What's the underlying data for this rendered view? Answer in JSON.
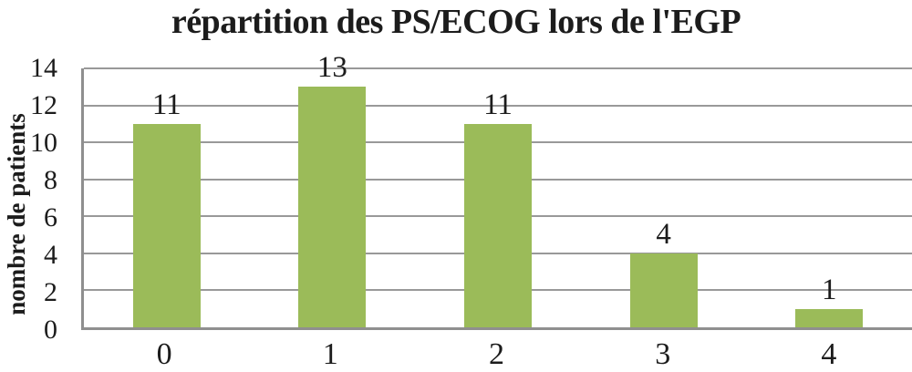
{
  "chart_data": {
    "type": "bar",
    "title": "répartition des PS/ECOG lors de l'EGP",
    "xlabel": "",
    "ylabel": "nombre de patients",
    "categories": [
      "0",
      "1",
      "2",
      "3",
      "4"
    ],
    "values": [
      11,
      13,
      11,
      4,
      1
    ],
    "series": [
      {
        "name": "nombre de patients",
        "values": [
          11,
          13,
          11,
          4,
          1
        ]
      }
    ],
    "data_labels": [
      "11",
      "13",
      "11",
      "4",
      "1"
    ],
    "ylim": [
      0,
      14
    ],
    "ytick_step": 2,
    "yticks": [
      "14",
      "12",
      "10",
      "8",
      "6",
      "4",
      "2",
      "0"
    ],
    "grid": "horizontal-on",
    "legend": "none",
    "colors": {
      "bar": "#9BBB59",
      "gridline": "#999999",
      "axis": "#8F8F8F",
      "text": "#1C1C1C",
      "background": "#FFFFFF"
    }
  }
}
